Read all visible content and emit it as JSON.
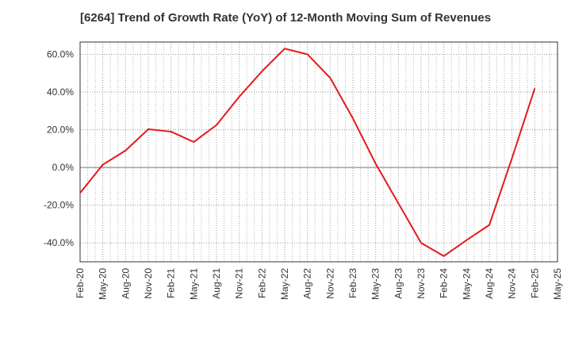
{
  "chart_data": {
    "type": "line",
    "title": "[6264]  Trend of Growth Rate (YoY) of 12-Month Moving Sum of Revenues",
    "xlabel": "",
    "ylabel": "",
    "x_tick_labels": [
      "Feb-20",
      "May-20",
      "Aug-20",
      "Nov-20",
      "Feb-21",
      "May-21",
      "Aug-21",
      "Nov-21",
      "Feb-22",
      "May-22",
      "Aug-22",
      "Nov-22",
      "Feb-23",
      "May-23",
      "Aug-23",
      "Nov-23",
      "Feb-24",
      "May-24",
      "Aug-24",
      "Nov-24",
      "Feb-25",
      "May-25"
    ],
    "y_tick_labels": [
      "-40.0%",
      "-20.0%",
      "0.0%",
      "20.0%",
      "40.0%",
      "60.0%"
    ],
    "y_ticks": [
      -40,
      -20,
      0,
      20,
      40,
      60
    ],
    "ylim": [
      -50,
      66.5
    ],
    "grid": true,
    "line_color": "#e31a1c",
    "series": [
      {
        "name": "",
        "x": [
          "Feb-20",
          "May-20",
          "Aug-20",
          "Nov-20",
          "Feb-21",
          "May-21",
          "Aug-21",
          "Nov-21",
          "Feb-22",
          "May-22",
          "Aug-22",
          "Nov-22",
          "Feb-23",
          "May-23",
          "Aug-23",
          "Nov-23",
          "Feb-24",
          "May-24",
          "Aug-24",
          "Nov-24",
          "Feb-25"
        ],
        "values": [
          -13.5,
          1.5,
          9.0,
          20.3,
          19.0,
          13.5,
          22.5,
          37.5,
          51.0,
          63.0,
          60.0,
          47.5,
          26.0,
          2.0,
          -19.0,
          -40.0,
          -47.0,
          -38.5,
          -30.5,
          5.0,
          42.0
        ]
      }
    ]
  }
}
